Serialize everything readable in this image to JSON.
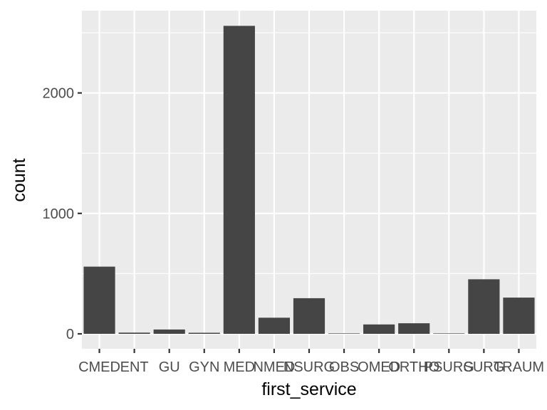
{
  "chart_data": {
    "type": "bar",
    "xlabel": "first_service",
    "ylabel": "count",
    "categories": [
      "CMED",
      "ENT",
      "GU",
      "GYN",
      "MED",
      "NMED",
      "NSURG",
      "OBS",
      "OMED",
      "ORTHO",
      "PSURG",
      "SURG",
      "TRAUM"
    ],
    "values": [
      558,
      10,
      36,
      9,
      2557,
      134,
      296,
      4,
      78,
      88,
      4,
      453,
      301
    ],
    "y_ticks": [
      0,
      1000,
      2000
    ],
    "ylim": [
      -124,
      2683
    ],
    "grid": true,
    "legend": "none",
    "colors": {
      "panel": "#ebebeb",
      "grid_major": "#ffffff",
      "bar": "#454545",
      "tick_text": "#4d4d4d",
      "tick_mark": "#333333"
    }
  }
}
